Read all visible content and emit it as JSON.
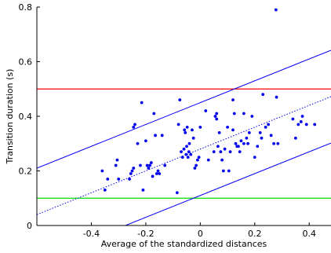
{
  "chart_data": {
    "type": "scatter",
    "title": "",
    "xlabel": "Average of the standardized distances",
    "ylabel": "Transition duration (s)",
    "xlim": [
      -0.6,
      0.48
    ],
    "ylim": [
      0,
      0.8
    ],
    "xticks": [
      {
        "value": -0.4,
        "label": "-0.4"
      },
      {
        "value": -0.2,
        "label": "-0.2"
      },
      {
        "value": 0,
        "label": "0"
      },
      {
        "value": 0.2,
        "label": "0.2"
      },
      {
        "value": 0.4,
        "label": "0.4"
      }
    ],
    "yticks": [
      {
        "value": 0,
        "label": "0"
      },
      {
        "value": 0.2,
        "label": "0.2"
      },
      {
        "value": 0.4,
        "label": "0.4"
      },
      {
        "value": 0.6,
        "label": "0.6"
      },
      {
        "value": 0.8,
        "label": "0.8"
      }
    ],
    "grid": false,
    "legend": "none",
    "colors": {
      "points": "#0000ee",
      "fit_line": "#0000ee",
      "bound_lines": "#0000ee",
      "upper_threshold": "#ff0000",
      "lower_threshold": "#00dd00"
    },
    "points": [
      [
        -0.36,
        0.2
      ],
      [
        -0.35,
        0.13
      ],
      [
        -0.34,
        0.17
      ],
      [
        -0.31,
        0.22
      ],
      [
        -0.305,
        0.24
      ],
      [
        -0.3,
        0.17
      ],
      [
        -0.26,
        0.17
      ],
      [
        -0.255,
        0.19
      ],
      [
        -0.25,
        0.2
      ],
      [
        -0.245,
        0.21
      ],
      [
        -0.245,
        0.36
      ],
      [
        -0.24,
        0.37
      ],
      [
        -0.23,
        0.3
      ],
      [
        -0.22,
        0.22
      ],
      [
        -0.215,
        0.45
      ],
      [
        -0.21,
        0.13
      ],
      [
        -0.2,
        0.31
      ],
      [
        -0.195,
        0.22
      ],
      [
        -0.19,
        0.21
      ],
      [
        -0.185,
        0.22
      ],
      [
        -0.18,
        0.23
      ],
      [
        -0.175,
        0.18
      ],
      [
        -0.17,
        0.41
      ],
      [
        -0.165,
        0.33
      ],
      [
        -0.16,
        0.19
      ],
      [
        -0.155,
        0.2
      ],
      [
        -0.15,
        0.19
      ],
      [
        -0.14,
        0.33
      ],
      [
        -0.13,
        0.22
      ],
      [
        -0.085,
        0.12
      ],
      [
        -0.08,
        0.37
      ],
      [
        -0.075,
        0.46
      ],
      [
        -0.07,
        0.27
      ],
      [
        -0.065,
        0.25
      ],
      [
        -0.06,
        0.28
      ],
      [
        -0.058,
        0.35
      ],
      [
        -0.055,
        0.34
      ],
      [
        -0.052,
        0.26
      ],
      [
        -0.05,
        0.29
      ],
      [
        -0.048,
        0.36
      ],
      [
        -0.045,
        0.25
      ],
      [
        -0.042,
        0.27
      ],
      [
        -0.04,
        0.3
      ],
      [
        -0.035,
        0.26
      ],
      [
        -0.03,
        0.35
      ],
      [
        -0.025,
        0.32
      ],
      [
        -0.02,
        0.21
      ],
      [
        -0.015,
        0.22
      ],
      [
        -0.01,
        0.24
      ],
      [
        -0.005,
        0.25
      ],
      [
        0.0,
        0.36
      ],
      [
        0.02,
        0.42
      ],
      [
        0.03,
        0.24
      ],
      [
        0.05,
        0.27
      ],
      [
        0.055,
        0.4
      ],
      [
        0.06,
        0.41
      ],
      [
        0.06,
        0.39
      ],
      [
        0.065,
        0.29
      ],
      [
        0.07,
        0.34
      ],
      [
        0.075,
        0.27
      ],
      [
        0.08,
        0.24
      ],
      [
        0.085,
        0.2
      ],
      [
        0.09,
        0.28
      ],
      [
        0.1,
        0.36
      ],
      [
        0.105,
        0.2
      ],
      [
        0.11,
        0.27
      ],
      [
        0.12,
        0.35
      ],
      [
        0.12,
        0.46
      ],
      [
        0.125,
        0.41
      ],
      [
        0.13,
        0.3
      ],
      [
        0.135,
        0.29
      ],
      [
        0.14,
        0.29
      ],
      [
        0.145,
        0.27
      ],
      [
        0.15,
        0.31
      ],
      [
        0.16,
        0.41
      ],
      [
        0.16,
        0.3
      ],
      [
        0.17,
        0.32
      ],
      [
        0.175,
        0.3
      ],
      [
        0.18,
        0.34
      ],
      [
        0.19,
        0.4
      ],
      [
        0.2,
        0.25
      ],
      [
        0.21,
        0.29
      ],
      [
        0.22,
        0.34
      ],
      [
        0.225,
        0.32
      ],
      [
        0.23,
        0.48
      ],
      [
        0.24,
        0.36
      ],
      [
        0.25,
        0.37
      ],
      [
        0.26,
        0.33
      ],
      [
        0.27,
        0.3
      ],
      [
        0.28,
        0.47
      ],
      [
        0.285,
        0.3
      ],
      [
        0.278,
        0.79
      ],
      [
        0.34,
        0.39
      ],
      [
        0.35,
        0.32
      ],
      [
        0.36,
        0.37
      ],
      [
        0.37,
        0.38
      ],
      [
        0.375,
        0.4
      ],
      [
        0.39,
        0.37
      ],
      [
        0.42,
        0.37
      ]
    ],
    "fit_line": {
      "style": "dotted",
      "intercept": 0.28,
      "slope": 0.4
    },
    "bound_lines": {
      "style": "solid",
      "offset": 0.17,
      "slope": 0.4
    },
    "thresholds": [
      {
        "name": "upper",
        "value": 0.5,
        "color": "#ff0000"
      },
      {
        "name": "lower",
        "value": 0.1,
        "color": "#00dd00"
      }
    ]
  }
}
